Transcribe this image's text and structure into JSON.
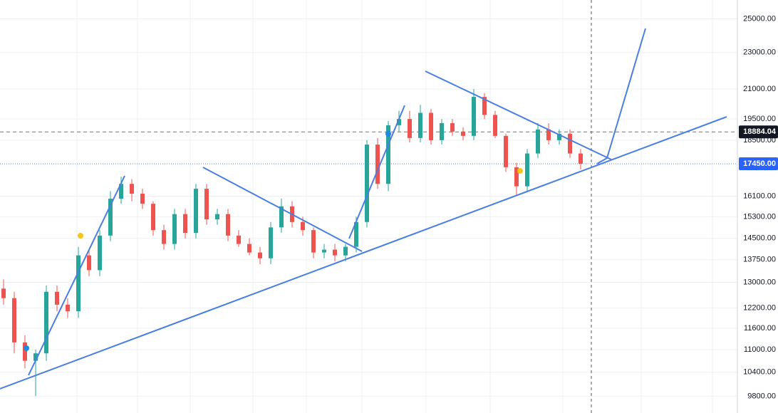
{
  "chart_data": {
    "type": "candlestick",
    "log_scale": true,
    "grid": true,
    "up_color": "#26a69a",
    "down_color": "#ef5350",
    "ylim": [
      9400,
      26200
    ],
    "yticks": [
      {
        "value": 25000,
        "label": "25000.00"
      },
      {
        "value": 23000,
        "label": "23000.00"
      },
      {
        "value": 21000,
        "label": "21000.00"
      },
      {
        "value": 19500,
        "label": "19500.00"
      },
      {
        "value": 18500,
        "label": "18500.00"
      },
      {
        "value": 16100,
        "label": "16100.00"
      },
      {
        "value": 15300,
        "label": "15300.00"
      },
      {
        "value": 14500,
        "label": "14500.00"
      },
      {
        "value": 13750,
        "label": "13750.00"
      },
      {
        "value": 13000,
        "label": "13000.00"
      },
      {
        "value": 12200,
        "label": "12200.00"
      },
      {
        "value": 11600,
        "label": "11600.00"
      },
      {
        "value": 11000,
        "label": "11000.00"
      },
      {
        "value": 10400,
        "label": "10400.00"
      },
      {
        "value": 9800,
        "label": "9800.00"
      }
    ],
    "price_lines": [
      {
        "value": 18884.04,
        "label": "18884.04",
        "color": "#131722",
        "style": "dashed"
      },
      {
        "value": 17450,
        "label": "17450.00",
        "color": "#2962ff",
        "style": "dotted"
      }
    ],
    "open": [
      12800,
      12500,
      11200,
      10700,
      10900,
      12700,
      12300,
      12100,
      13900,
      13400,
      14600,
      16000,
      16600,
      16200,
      15800,
      14800,
      14300,
      15400,
      14700,
      16400,
      15200,
      15400,
      14600,
      14300,
      14000,
      13800,
      14900,
      15700,
      15100,
      14800,
      14000,
      14100,
      13900,
      14200,
      15100,
      18300,
      16600,
      19200,
      19500,
      18600,
      19800,
      18500,
      19300,
      18900,
      18700,
      20600,
      19700,
      18700,
      17300,
      16500,
      17900,
      19000,
      18500,
      18800,
      17900
    ],
    "high": [
      13100,
      12700,
      11400,
      11000,
      12900,
      12900,
      12500,
      14200,
      14100,
      14800,
      16300,
      16900,
      16800,
      16400,
      15900,
      15000,
      15600,
      15600,
      16600,
      16600,
      15600,
      15600,
      14800,
      14500,
      14200,
      15100,
      16000,
      15900,
      15300,
      14900,
      14300,
      14300,
      14300,
      15300,
      18500,
      18600,
      19400,
      19900,
      19900,
      20200,
      20000,
      19500,
      19500,
      19100,
      21000,
      20800,
      19900,
      18800,
      17500,
      18100,
      19300,
      19300,
      19000,
      19000,
      18100
    ],
    "low": [
      12300,
      10900,
      10500,
      9800,
      10700,
      12100,
      11900,
      11900,
      13200,
      13200,
      14400,
      15800,
      15900,
      15600,
      14600,
      14100,
      14100,
      14500,
      14500,
      15000,
      15000,
      14400,
      14200,
      13900,
      13600,
      13600,
      14700,
      14900,
      14600,
      13800,
      13800,
      13700,
      13700,
      14000,
      14900,
      16400,
      16300,
      18900,
      18400,
      18400,
      18300,
      18300,
      18700,
      18500,
      18500,
      19500,
      18600,
      17100,
      16100,
      16300,
      17700,
      18300,
      18300,
      17700,
      17200
    ],
    "close": [
      12500,
      11200,
      10700,
      10900,
      12700,
      12300,
      12100,
      13900,
      13400,
      14600,
      16000,
      16600,
      16200,
      15800,
      14800,
      14300,
      15400,
      14700,
      16400,
      15200,
      15400,
      14600,
      14300,
      14000,
      13800,
      14900,
      15700,
      15100,
      14800,
      14000,
      14100,
      13900,
      14200,
      15100,
      18300,
      16600,
      19200,
      19500,
      18600,
      19800,
      18500,
      19300,
      18900,
      18700,
      20600,
      19700,
      18700,
      17300,
      16500,
      17900,
      19000,
      18500,
      18800,
      17900,
      17450
    ]
  }
}
